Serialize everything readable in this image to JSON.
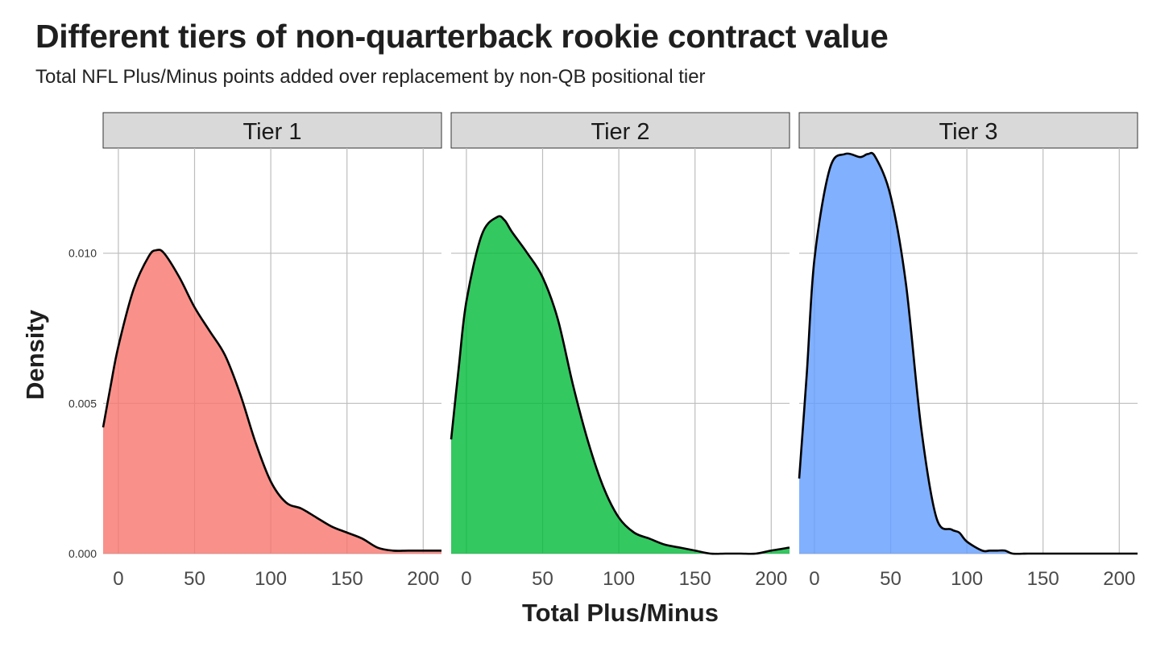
{
  "title": "Different tiers of non-quarterback rookie contract value",
  "subtitle": "Total NFL Plus/Minus points added over replacement by non-QB positional tier",
  "chart_data": {
    "type": "area",
    "subtype": "density, faceted",
    "xlabel": "Total Plus/Minus",
    "ylabel": "Density",
    "xlim": [
      -10,
      212
    ],
    "ylim": [
      0,
      0.0135
    ],
    "x_ticks": [
      "0",
      "50",
      "100",
      "150",
      "200"
    ],
    "x_tick_values": [
      0,
      50,
      100,
      150,
      200
    ],
    "y_ticks": [
      "0.000",
      "0.005",
      "0.010"
    ],
    "y_tick_values": [
      0,
      0.005,
      0.01
    ],
    "grid": true,
    "facets": [
      {
        "name": "Tier 1",
        "color": "#F8766D",
        "x": [
          -10,
          -5,
          0,
          10,
          20,
          25,
          30,
          40,
          50,
          60,
          70,
          80,
          90,
          100,
          110,
          120,
          130,
          140,
          150,
          160,
          170,
          180,
          190,
          200,
          212
        ],
        "y": [
          0.0042,
          0.0056,
          0.0069,
          0.0088,
          0.0099,
          0.0101,
          0.01,
          0.0092,
          0.0082,
          0.0074,
          0.0066,
          0.0053,
          0.0037,
          0.0024,
          0.0017,
          0.0015,
          0.0012,
          0.0009,
          0.0007,
          0.0005,
          0.0002,
          0.0001,
          0.0001,
          0.0001,
          0.0001
        ]
      },
      {
        "name": "Tier 2",
        "color": "#00BA38",
        "x": [
          -10,
          -5,
          0,
          10,
          20,
          25,
          30,
          40,
          50,
          60,
          70,
          80,
          90,
          100,
          110,
          120,
          130,
          140,
          150,
          160,
          170,
          180,
          190,
          200,
          212
        ],
        "y": [
          0.0038,
          0.0062,
          0.0084,
          0.0106,
          0.0112,
          0.0111,
          0.0107,
          0.01,
          0.0092,
          0.0078,
          0.0056,
          0.0037,
          0.0022,
          0.0012,
          0.0007,
          0.0005,
          0.0003,
          0.0002,
          0.0001,
          0.0,
          0.0,
          0.0,
          0.0,
          0.0001,
          0.0002
        ]
      },
      {
        "name": "Tier 3",
        "color": "#619CFF",
        "x": [
          -10,
          -5,
          0,
          10,
          20,
          30,
          35,
          40,
          50,
          60,
          70,
          80,
          90,
          95,
          100,
          110,
          115,
          120,
          125,
          130,
          140,
          150,
          160,
          212
        ],
        "y": [
          0.0025,
          0.006,
          0.0098,
          0.0128,
          0.0133,
          0.0132,
          0.0133,
          0.0132,
          0.0119,
          0.009,
          0.0042,
          0.0012,
          0.0008,
          0.0007,
          0.0004,
          0.0001,
          0.0001,
          0.0001,
          0.0001,
          0.0,
          0.0,
          0.0,
          0.0,
          0.0
        ]
      }
    ]
  }
}
